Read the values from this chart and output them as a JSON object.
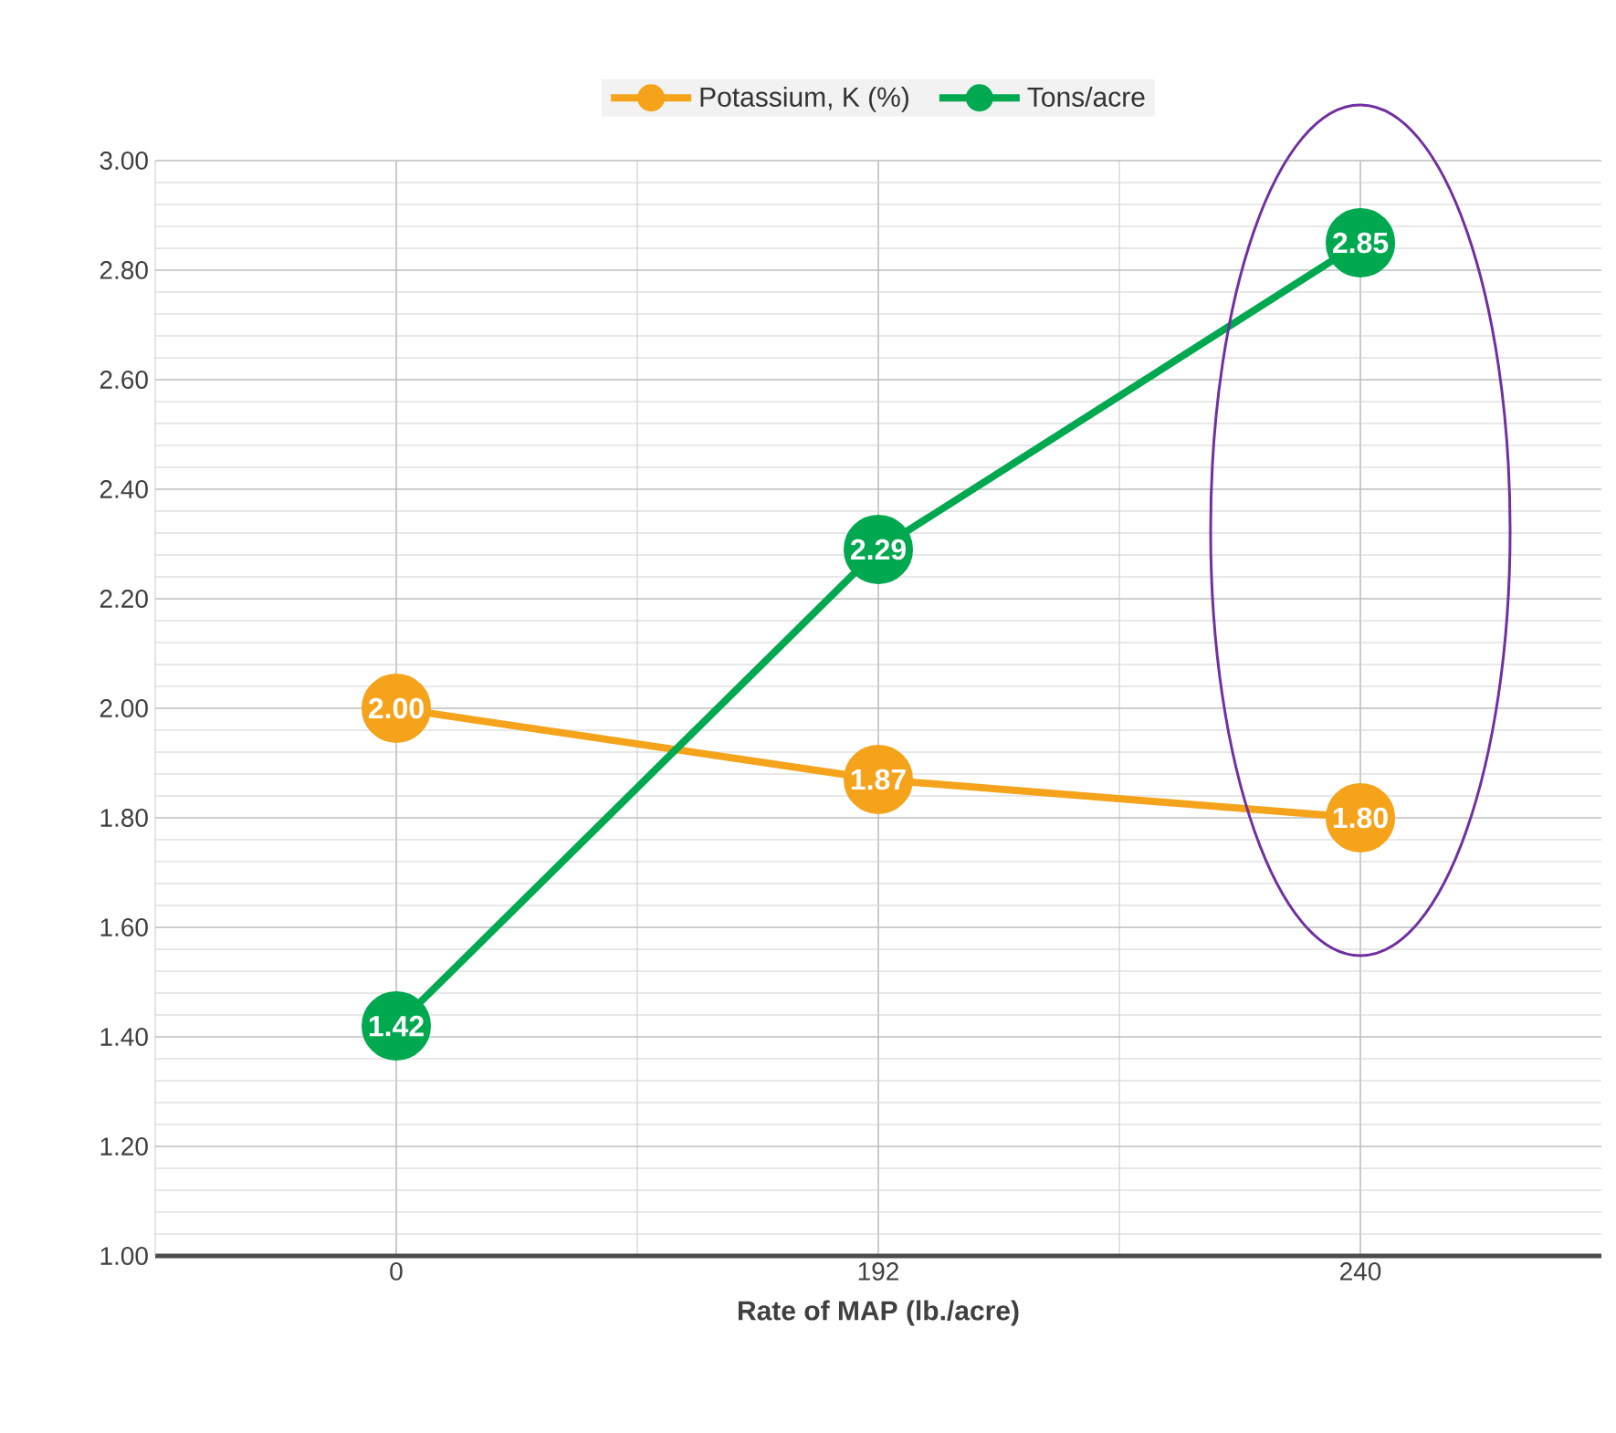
{
  "chart_data": {
    "type": "line",
    "xlabel": "Rate of MAP (lb./acre)",
    "categories": [
      "0",
      "192",
      "240"
    ],
    "series": [
      {
        "name": "Potassium, K (%)",
        "color": "#f5a31a",
        "values": [
          2.0,
          1.87,
          1.8
        ],
        "value_labels": [
          "2.00",
          "1.87",
          "1.80"
        ]
      },
      {
        "name": "Tons/acre",
        "color": "#00a84f",
        "values": [
          1.42,
          2.29,
          2.85
        ],
        "value_labels": [
          "1.42",
          "2.29",
          "2.85"
        ]
      }
    ],
    "ylim": [
      1.0,
      3.0
    ],
    "yticks": [
      {
        "value": 1.0,
        "label": "1.00"
      },
      {
        "value": 1.2,
        "label": "1.20"
      },
      {
        "value": 1.4,
        "label": "1.40"
      },
      {
        "value": 1.6,
        "label": "1.60"
      },
      {
        "value": 1.8,
        "label": "1.80"
      },
      {
        "value": 2.0,
        "label": "2.00"
      },
      {
        "value": 2.2,
        "label": "2.20"
      },
      {
        "value": 2.4,
        "label": "2.40"
      },
      {
        "value": 2.6,
        "label": "2.60"
      },
      {
        "value": 2.8,
        "label": "2.80"
      },
      {
        "value": 3.0,
        "label": "3.00"
      }
    ],
    "grid": true,
    "legend": "top",
    "marker": "circle",
    "line_style": "solid"
  }
}
